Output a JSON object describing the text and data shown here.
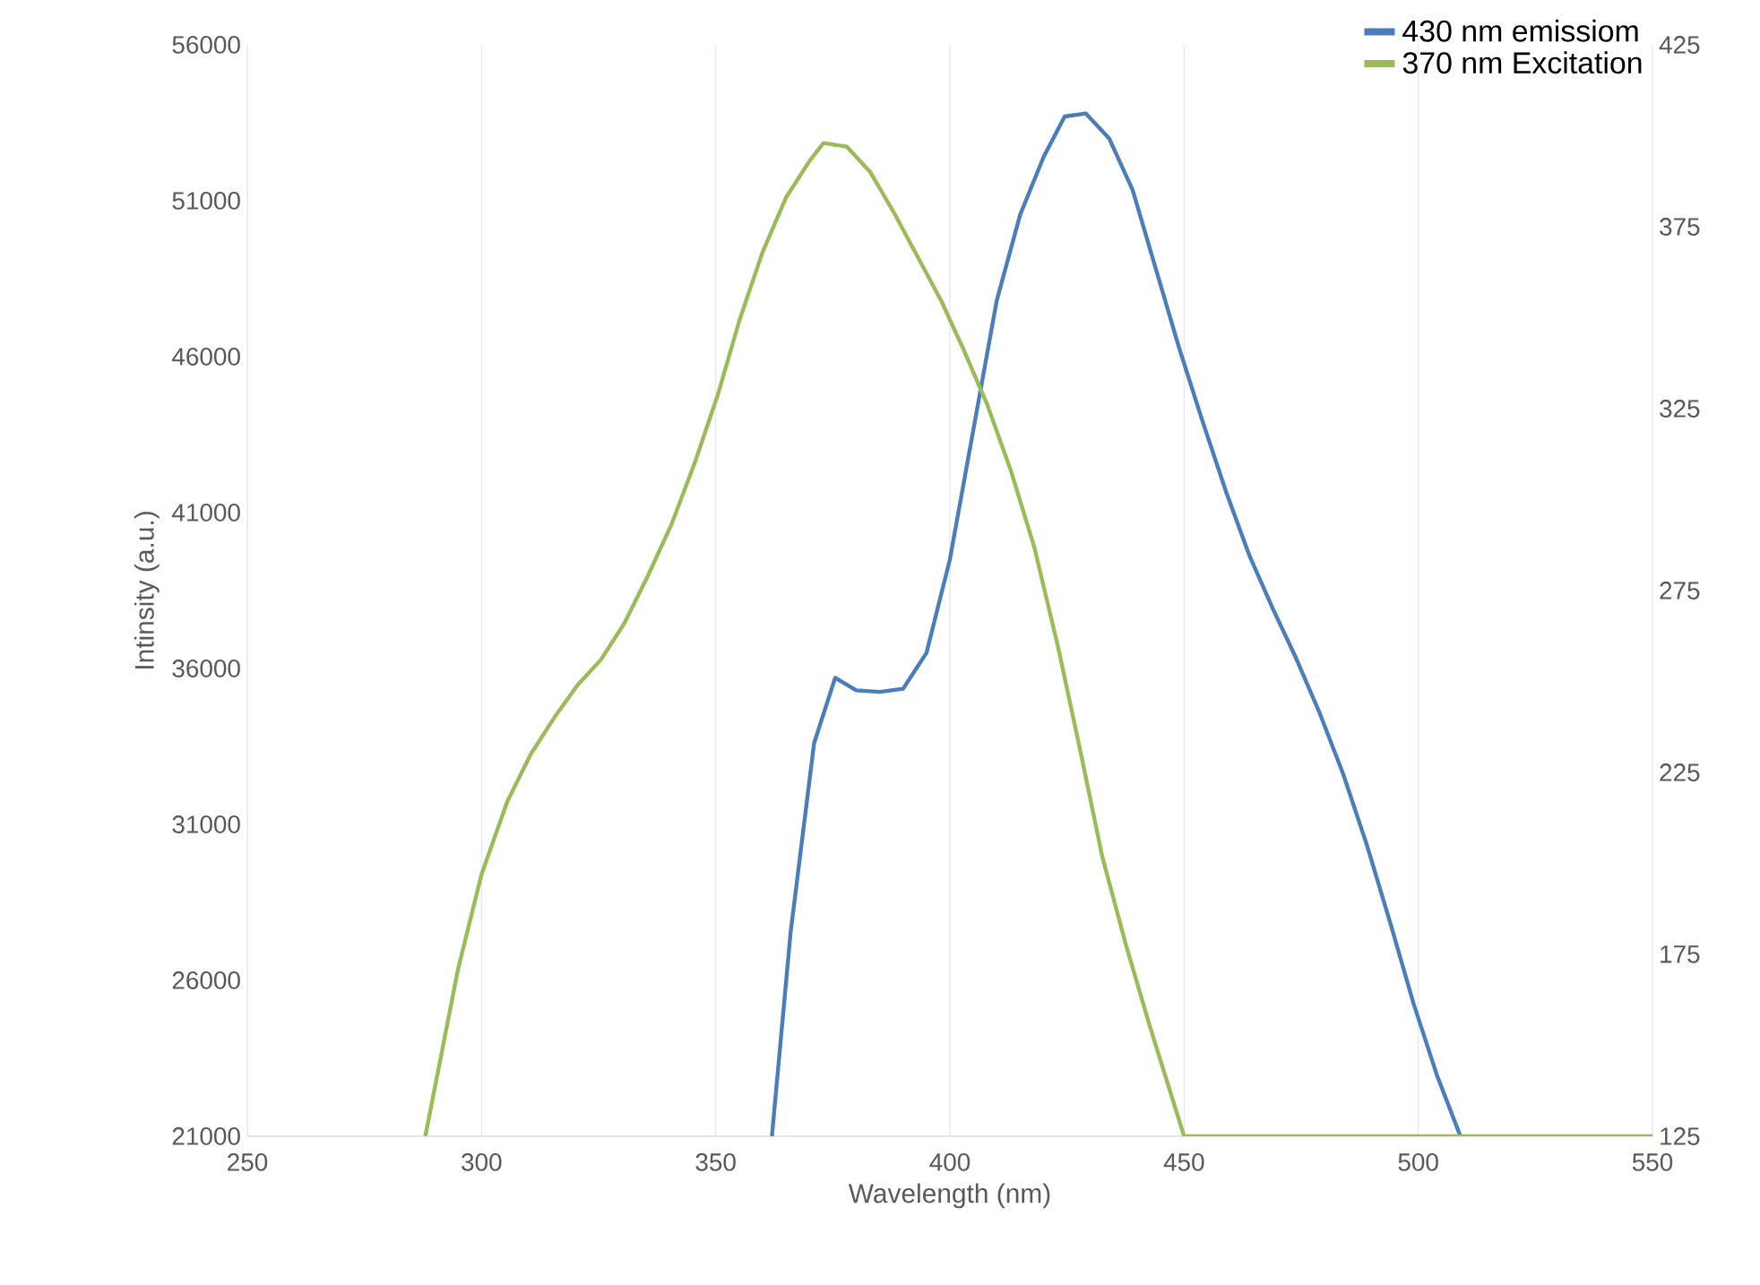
{
  "chart_data": {
    "type": "line",
    "xlabel": "Wavelength (nm)",
    "ylabel": "Intinsity (a.u.)",
    "xlim": [
      250,
      550
    ],
    "xticks": [
      250,
      300,
      350,
      400,
      450,
      500,
      550
    ],
    "ylim": [
      21000,
      56000
    ],
    "yticks": [
      21000,
      26000,
      31000,
      36000,
      41000,
      46000,
      51000,
      56000
    ],
    "y2lim": [
      125,
      425
    ],
    "y2ticks": [
      125,
      175,
      225,
      275,
      325,
      375,
      425
    ],
    "grid": "x",
    "legend": "top right",
    "series": [
      {
        "name": "430 nm emissiom",
        "color": "#4a7ebb",
        "x": [
          362,
          366,
          371,
          375.5,
          380,
          385,
          390,
          395,
          400,
          405,
          410,
          415,
          420,
          424.5,
          429,
          434,
          439,
          444,
          449,
          454,
          459,
          464,
          469,
          474,
          479,
          484,
          489,
          494,
          499,
          504,
          509
        ],
        "values": [
          21000,
          27550,
          33600,
          35700,
          35300,
          35250,
          35350,
          36500,
          39500,
          43650,
          47800,
          50550,
          52400,
          53700,
          53800,
          53000,
          51350,
          48800,
          46250,
          43900,
          41650,
          39600,
          37900,
          36300,
          34550,
          32600,
          30350,
          27850,
          25250,
          22950,
          21000
        ]
      },
      {
        "name": "370 nm Excitation",
        "color": "#9bbb59",
        "axis": "y2",
        "x": [
          288,
          295,
          300,
          305.5,
          310.5,
          315.5,
          320.5,
          325.5,
          330.5,
          335.5,
          340.5,
          345.5,
          350.5,
          355,
          360,
          365,
          370,
          373,
          378,
          383,
          388,
          393,
          398,
          403,
          408,
          413,
          418,
          423,
          428,
          432.5,
          437.5,
          442.5,
          450,
          550
        ],
        "values": [
          125,
          171,
          197,
          217,
          230,
          240,
          249,
          256,
          266,
          279,
          293,
          310,
          329,
          349,
          368,
          383,
          393,
          398,
          397,
          390,
          379,
          367,
          355,
          341,
          326,
          308,
          287,
          260,
          230,
          202,
          178,
          156,
          125,
          125
        ]
      }
    ]
  }
}
